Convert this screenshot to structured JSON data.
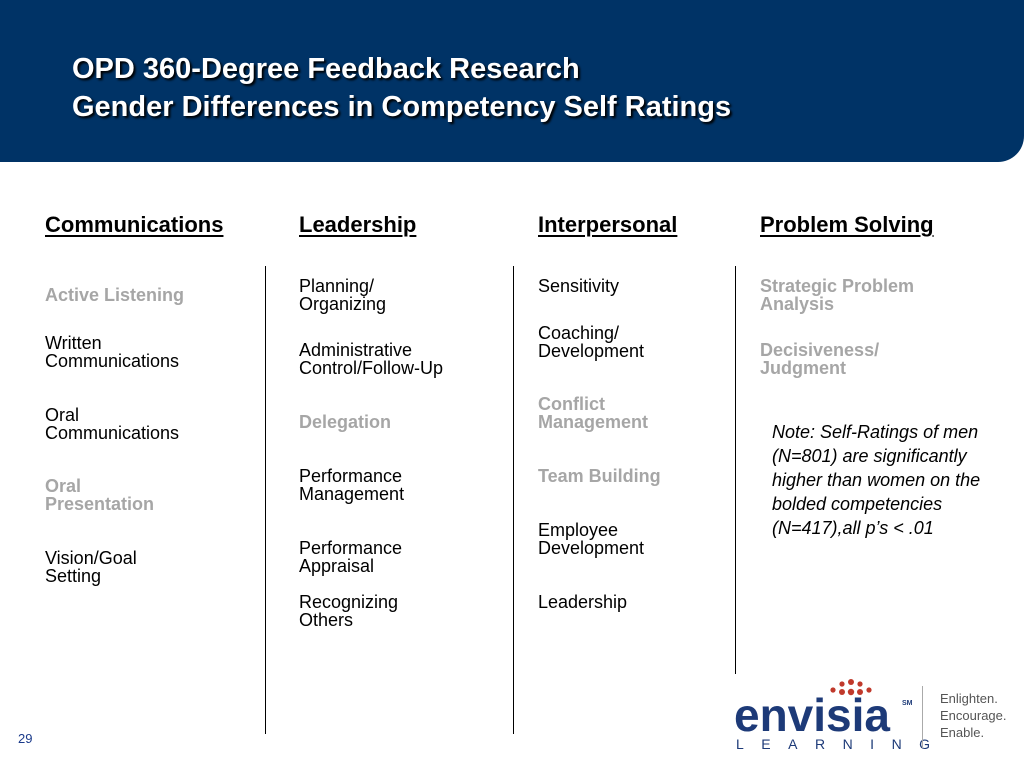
{
  "header": {
    "title_line1": "OPD 360-Degree Feedback Research",
    "title_line2": "Gender Differences in Competency Self Ratings"
  },
  "columns": [
    {
      "heading": "Communications",
      "items": [
        {
          "text": "Active Listening",
          "significant": true
        },
        {
          "text": "Written\nCommunications",
          "significant": false
        },
        {
          "text": "Oral\nCommunications",
          "significant": false
        },
        {
          "text": "Oral\nPresentation",
          "significant": true
        },
        {
          "text": "Vision/Goal\nSetting",
          "significant": false
        }
      ]
    },
    {
      "heading": "Leadership",
      "items": [
        {
          "text": "Planning/\nOrganizing",
          "significant": false
        },
        {
          "text": "Administrative\nControl/Follow-Up",
          "significant": false
        },
        {
          "text": "Delegation",
          "significant": true
        },
        {
          "text": "Performance\nManagement",
          "significant": false
        },
        {
          "text": "Performance\nAppraisal",
          "significant": false
        },
        {
          "text": "Recognizing\nOthers",
          "significant": false
        }
      ]
    },
    {
      "heading": "Interpersonal",
      "items": [
        {
          "text": "Sensitivity",
          "significant": false
        },
        {
          "text": "Coaching/\nDevelopment",
          "significant": false
        },
        {
          "text": "Conflict\nManagement",
          "significant": true
        },
        {
          "text": "Team Building",
          "significant": true
        },
        {
          "text": "Employee\nDevelopment",
          "significant": false
        },
        {
          "text": "Leadership",
          "significant": false
        }
      ]
    },
    {
      "heading": "Problem Solving",
      "items": [
        {
          "text": "Strategic Problem\nAnalysis",
          "significant": true
        },
        {
          "text": "Decisiveness/\nJudgment",
          "significant": true
        }
      ]
    }
  ],
  "note": "Note: Self-Ratings of men (N=801) are significantly higher than women on the bolded competencies (N=417),all p’s < .01",
  "page_number": "29",
  "logo": {
    "wordmark": "envisia",
    "service_mark": "SM",
    "subtitle": "LEARNING",
    "tagline": "Enlighten.\nEncourage.\nEnable."
  },
  "colors": {
    "header_bg": "#003366",
    "significant_text": "#a6a6a6",
    "logo_blue": "#1d3a78",
    "logo_dots": "#c0392b"
  }
}
